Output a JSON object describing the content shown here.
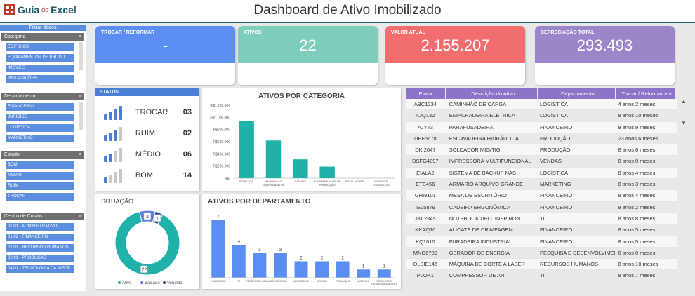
{
  "header": {
    "logo_main": "Guia",
    "logo_mid": "do",
    "logo_end": "Excel",
    "title": "Dashboard de Ativo Imobilizado"
  },
  "sidebar": {
    "title": "Filtrar dados",
    "slicers": [
      {
        "title": "Categoria",
        "items": [
          "EDIFÍCIOS",
          "EQUIPAMENTOS DE PRODU...",
          "IMÓVEIS",
          "INSTALAÇÕES"
        ]
      },
      {
        "title": "Departamento",
        "items": [
          "FINANCEIRO",
          "JURÍDICO",
          "LOGÍSTICA",
          "MARKETING"
        ]
      },
      {
        "title": "Estado",
        "items": [
          "BOM",
          "MÉDIO",
          "RUIM",
          "TROCAR"
        ]
      },
      {
        "title": "Centro de Custos",
        "items": [
          "01.01 - ADMINISTRATIVO",
          "01.02 - FINANCEIRO",
          "01.03 - RECURSOS HUMANOS",
          "02.01 - PRODUÇÃO",
          "04.01 - TECNOLOGIA DA INFOR..."
        ]
      }
    ]
  },
  "cards": [
    {
      "label": "TROCAR / REFORMAR",
      "value": "-",
      "color": "#5b8ef0"
    },
    {
      "label": "ATIVOS",
      "value": "22",
      "color": "#7fcdbb"
    },
    {
      "label": "VALOR ATUAL",
      "value": "2.155.207",
      "color": "#f26d6d"
    },
    {
      "label": "DEPRECIAÇÃO TOTAL",
      "value": "293.493",
      "color": "#9b86c9"
    }
  ],
  "status": {
    "title": "STATUS",
    "rows": [
      {
        "label": "TROCAR",
        "count": "03",
        "level": 4
      },
      {
        "label": "RUIM",
        "count": "02",
        "level": 3
      },
      {
        "label": "MÉDIO",
        "count": "06",
        "level": 2
      },
      {
        "label": "BOM",
        "count": "14",
        "level": 1
      }
    ]
  },
  "situacao": {
    "title": "SITUAÇÃO",
    "legend": [
      "Ativo",
      "Baixado",
      "Vendido"
    ],
    "colors": [
      "#20b2aa",
      "#5b7fe0",
      "#1f3d7a"
    ]
  },
  "chart_data": [
    {
      "type": "bar",
      "title": "ATIVOS POR CATEGORIA",
      "categories": [
        "EDIFÍCIOS",
        "MÁQUINAS E EQUIPAMENTOS",
        "IMÓVEIS",
        "EQUIPAMENTOS DE PRODUÇÃO",
        "INSTALAÇÕES",
        "MÓVEIS E UTENSÍLIOS"
      ],
      "values": [
        940000,
        620000,
        310000,
        190000,
        0,
        0
      ],
      "yticks": [
        "R$1.200.000",
        "R$1.000.000",
        "R$800.000",
        "R$600.000",
        "R$400.000",
        "R$200.000",
        "R$-"
      ],
      "ylim": [
        0,
        1200000
      ],
      "color": "#20b2aa"
    },
    {
      "type": "bar",
      "title": "ATIVOS POR DEPARTAMENTO",
      "categories": [
        "FINANCEIRO",
        "TI",
        "RECURSOS HUMANOS",
        "LOGÍSTICA",
        "MARKETING",
        "VENDAS",
        "PRODUÇÃO",
        "JURÍDICO",
        "PESQUISA E DESENVOLVIMENTO"
      ],
      "values": [
        7,
        4,
        3,
        3,
        2,
        2,
        2,
        1,
        1
      ],
      "ylim": [
        0,
        8
      ],
      "color": "#5b8ef0"
    },
    {
      "type": "pie",
      "categories": [
        "Ativo",
        "Baixado",
        "Vendido"
      ],
      "values": [
        22,
        2,
        1
      ]
    }
  ],
  "table": {
    "headers": [
      "Placa",
      "Descrição do Ativo",
      "Departamento",
      "Trocar / Reformar em"
    ],
    "rows": [
      [
        "ABC1234",
        "CAMINHÃO DE CARGA",
        "LOGÍSTICA",
        "4 anos 2 meses"
      ],
      [
        "AJQ132",
        "EMPILHADEIRA ELÉTRICA",
        "LOGÍSTICA",
        "8 anos 10 meses"
      ],
      [
        "AJY73",
        "PARAFUSADEIRA",
        "FINANCEIRO",
        "8 anos 9 meses"
      ],
      [
        "DEF5678",
        "ESCAVADEIRA HIDRÁULICA",
        "PRODUÇÃO",
        "23 anos 6 meses"
      ],
      [
        "DKI2647",
        "SOLDADOR MIG/TIG",
        "PRODUÇÃO",
        "8 anos 6 meses"
      ],
      [
        "DSFG4897",
        "IMPRESSORA MULTIFUNCIONAL",
        "VENDAS",
        "8 anos 0 meses"
      ],
      [
        "EIALA2",
        "SISTEMA DE BACKUP NAS",
        "LOGÍSTICA",
        "8 anos 4 meses"
      ],
      [
        "ETE456",
        "ARMÁRIO ARQUIVO GRANDE",
        "MARKETING",
        "8 anos 3 meses"
      ],
      [
        "GHI9101",
        "MESA DE ESCRITÓRIO",
        "FINANCEIRO",
        "8 anos 4 meses"
      ],
      [
        "IEL5879",
        "CADEIRA ERGONÔMICA",
        "FINANCEIRO",
        "8 anos 2 meses"
      ],
      [
        "JKL2345",
        "NOTEBOOK DELL INSPIRON",
        "TI",
        "8 anos 8 meses"
      ],
      [
        "KKAQ10",
        "ALICATE DE CRIMPAGEM",
        "FINANCEIRO",
        "8 anos 5 meses"
      ],
      [
        "KQ1010",
        "FURADEIRA INDUSTRIAL",
        "FINANCEIRO",
        "8 anos 5 meses"
      ],
      [
        "MNO6789",
        "GERADOR DE ENERGIA",
        "PESQUISA E DESENVOLVIMENTO",
        "8 anos 0 meses"
      ],
      [
        "OLSIE145",
        "MÁQUINA DE CORTE A LASER",
        "RECURSOS HUMANOS",
        "8 anos 10 meses"
      ],
      [
        "PLOK1",
        "COMPRESSOR DE AR",
        "TI",
        "8 anos 7 meses"
      ]
    ]
  }
}
